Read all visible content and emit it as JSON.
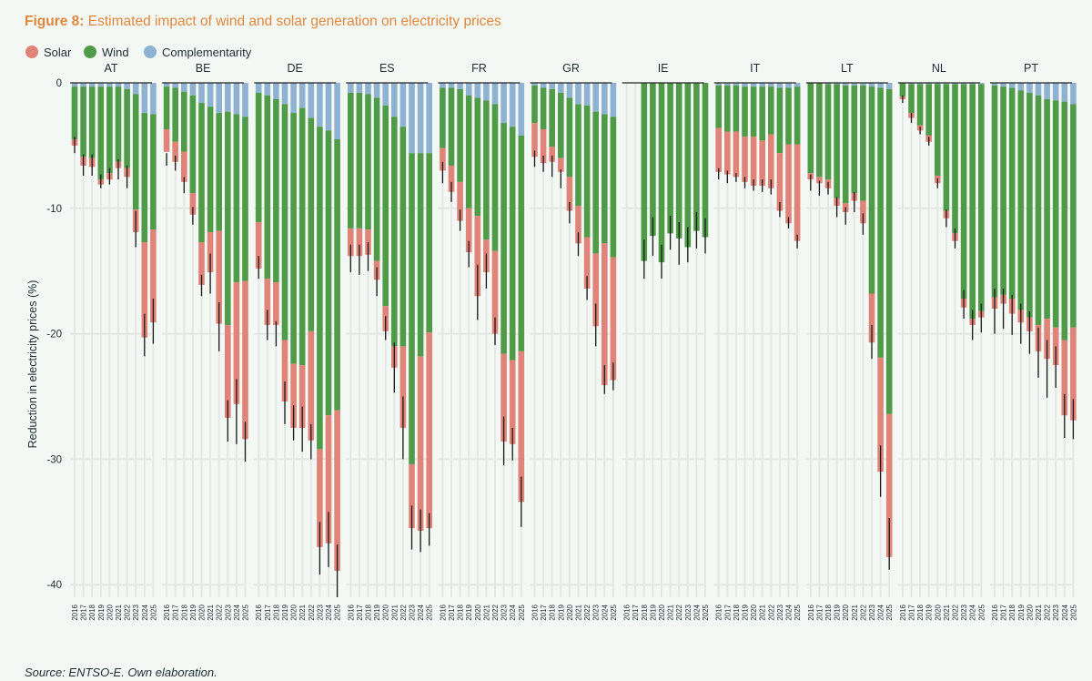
{
  "figure": {
    "label": "Figure 8:",
    "title": "Estimated impact of wind and solar generation on electricity prices",
    "source": "Source: ENTSO-E. Own elaboration."
  },
  "colors": {
    "title": "#e0873a",
    "solar": "#e08378",
    "wind": "#4f9b48",
    "complementarity": "#8fb2d3",
    "background": "#f3f8f5",
    "gridline": "#e3e8e5",
    "errorbar": "#1a1a1a"
  },
  "chart_data": {
    "type": "bar",
    "subtype": "stacked, faceted by country",
    "ylabel": "Reduction in electricity prices (%)",
    "ylim": [
      -41,
      0
    ],
    "yticks": [
      0,
      -10,
      -20,
      -30,
      -40
    ],
    "ytick_labels": [
      "0",
      "-10",
      "-20",
      "-30",
      "-40"
    ],
    "legend": {
      "position": "top-left",
      "items": [
        {
          "key": "solar",
          "label": "Solar"
        },
        {
          "key": "wind",
          "label": "Wind"
        },
        {
          "key": "complementarity",
          "label": "Complementarity"
        }
      ]
    },
    "years": [
      "2016",
      "2017",
      "2018",
      "2019",
      "2020",
      "2021",
      "2022",
      "2023",
      "2024",
      "2025"
    ],
    "stack_order": [
      "complementarity",
      "wind",
      "solar"
    ],
    "notes": "Values are the stack segment sizes (percentage points of price reduction); error bars show the uncertainty range of the total.",
    "panels": [
      {
        "country": "AT",
        "complementarity": [
          0.3,
          0.3,
          0.3,
          0.3,
          0.3,
          0.3,
          0.5,
          0.9,
          2.4,
          2.5
        ],
        "wind": [
          4.2,
          5.6,
          5.7,
          7.4,
          6.9,
          6.0,
          6.3,
          9.2,
          10.3,
          9.2
        ],
        "solar": [
          0.5,
          0.7,
          0.7,
          0.4,
          0.5,
          0.5,
          0.7,
          1.8,
          7.6,
          7.4
        ],
        "err_lo": [
          5.6,
          7.4,
          7.4,
          8.4,
          8.1,
          7.7,
          8.4,
          13.1,
          21.8,
          20.8
        ],
        "err_hi": [
          4.3,
          5.7,
          5.7,
          7.3,
          6.8,
          6.1,
          6.6,
          10.2,
          18.4,
          17.2
        ]
      },
      {
        "country": "BE",
        "complementarity": [
          0.3,
          0.4,
          0.7,
          1.0,
          1.6,
          1.9,
          2.4,
          2.3,
          2.5,
          2.7
        ],
        "wind": [
          3.4,
          4.3,
          4.8,
          7.8,
          11.1,
          10.0,
          9.4,
          17.0,
          13.4,
          13.1
        ],
        "solar": [
          1.8,
          1.6,
          2.4,
          1.7,
          3.4,
          3.2,
          7.4,
          7.4,
          9.7,
          12.6
        ],
        "err_lo": [
          6.6,
          7.0,
          8.8,
          11.3,
          17.0,
          16.8,
          21.4,
          28.6,
          28.8,
          30.2
        ],
        "err_hi": [
          5.6,
          5.8,
          7.5,
          9.9,
          15.3,
          13.6,
          17.5,
          25.3,
          23.6,
          27.0
        ]
      },
      {
        "country": "DE",
        "complementarity": [
          0.8,
          1.0,
          1.3,
          1.7,
          2.4,
          2.0,
          2.8,
          3.5,
          3.8,
          4.5
        ],
        "wind": [
          10.3,
          14.6,
          14.6,
          18.8,
          20.0,
          20.5,
          17.0,
          25.7,
          22.7,
          21.6
        ],
        "solar": [
          3.7,
          3.7,
          3.4,
          4.9,
          5.1,
          5.0,
          8.7,
          7.8,
          10.2,
          12.8
        ],
        "err_lo": [
          15.6,
          20.5,
          21.0,
          27.2,
          28.5,
          29.4,
          30.0,
          39.2,
          38.6,
          41.0
        ],
        "err_hi": [
          13.8,
          18.1,
          19.0,
          23.8,
          25.7,
          25.8,
          27.2,
          35.0,
          34.2,
          36.8
        ]
      },
      {
        "country": "ES",
        "complementarity": [
          0.8,
          0.8,
          0.9,
          1.2,
          1.8,
          2.7,
          3.5,
          5.6,
          5.6,
          5.6
        ],
        "wind": [
          10.8,
          10.8,
          10.8,
          13.0,
          16.0,
          18.3,
          17.5,
          24.8,
          16.2,
          14.3
        ],
        "solar": [
          2.2,
          2.2,
          2.0,
          1.5,
          2.0,
          1.7,
          6.5,
          5.1,
          13.9,
          15.6
        ],
        "err_lo": [
          15.1,
          15.3,
          15.0,
          17.0,
          20.5,
          24.7,
          30.0,
          37.2,
          37.4,
          36.9
        ],
        "err_hi": [
          12.9,
          12.9,
          12.7,
          14.7,
          18.6,
          20.7,
          25.0,
          33.7,
          34.0,
          34.3
        ]
      },
      {
        "country": "FR",
        "complementarity": [
          0.4,
          0.4,
          0.5,
          1.0,
          1.2,
          1.4,
          1.7,
          3.2,
          3.5,
          4.2
        ],
        "wind": [
          4.8,
          6.2,
          7.4,
          9.0,
          9.4,
          11.1,
          11.7,
          18.4,
          18.6,
          17.2
        ],
        "solar": [
          1.8,
          2.1,
          3.1,
          3.5,
          6.4,
          2.6,
          6.6,
          7.0,
          6.7,
          12.0
        ],
        "err_lo": [
          8.0,
          9.5,
          11.8,
          14.7,
          18.9,
          16.4,
          20.9,
          30.5,
          30.1,
          35.4
        ],
        "err_hi": [
          6.3,
          7.9,
          10.1,
          12.6,
          14.5,
          13.6,
          18.7,
          26.6,
          27.5,
          31.4
        ]
      },
      {
        "country": "GR",
        "complementarity": [
          0.2,
          0.4,
          0.5,
          0.8,
          1.2,
          1.7,
          1.8,
          2.3,
          2.5,
          2.7
        ],
        "wind": [
          3.0,
          3.3,
          4.6,
          5.2,
          6.3,
          8.1,
          10.5,
          11.3,
          10.3,
          11.2
        ],
        "solar": [
          2.7,
          2.7,
          1.2,
          1.1,
          2.7,
          3.0,
          4.1,
          5.8,
          11.3,
          9.8
        ],
        "err_lo": [
          6.7,
          7.1,
          7.5,
          8.4,
          11.2,
          13.8,
          17.3,
          21.0,
          24.8,
          24.5
        ],
        "err_hi": [
          5.4,
          5.8,
          5.8,
          6.9,
          9.5,
          11.9,
          15.4,
          17.6,
          22.5,
          22.3
        ]
      },
      {
        "country": "IE",
        "complementarity": [
          0.0,
          0.0,
          0.0,
          0.0,
          0.0,
          0.0,
          0.0,
          0.0,
          0.0,
          0.0
        ],
        "wind": [
          0.0,
          0.0,
          14.2,
          12.2,
          14.3,
          12.0,
          12.4,
          13.1,
          11.8,
          12.3
        ],
        "solar": [
          0.0,
          0.0,
          0.0,
          0.0,
          0.0,
          0.0,
          0.0,
          0.0,
          0.0,
          0.0
        ],
        "err_lo": [
          null,
          null,
          15.6,
          13.8,
          15.6,
          13.3,
          14.5,
          14.3,
          13.2,
          13.6
        ],
        "err_hi": [
          null,
          null,
          12.5,
          10.7,
          12.9,
          10.6,
          11.1,
          11.5,
          10.3,
          10.8
        ]
      },
      {
        "country": "IT",
        "complementarity": [
          0.2,
          0.2,
          0.2,
          0.3,
          0.3,
          0.3,
          0.3,
          0.4,
          0.4,
          0.3
        ],
        "wind": [
          3.4,
          3.7,
          3.7,
          4.0,
          4.0,
          4.3,
          3.8,
          5.2,
          4.5,
          4.6
        ],
        "solar": [
          3.5,
          3.4,
          3.6,
          3.6,
          3.9,
          3.6,
          4.3,
          4.6,
          6.3,
          7.7
        ],
        "err_lo": [
          7.7,
          8.0,
          7.9,
          8.4,
          8.6,
          8.7,
          8.9,
          10.7,
          11.6,
          13.2
        ],
        "err_hi": [
          6.8,
          7.0,
          7.2,
          7.5,
          7.7,
          7.7,
          7.7,
          9.5,
          10.7,
          12.1
        ]
      },
      {
        "country": "LT",
        "complementarity": [
          0.0,
          0.0,
          0.1,
          0.1,
          0.2,
          0.2,
          0.2,
          0.3,
          0.4,
          0.5
        ],
        "wind": [
          7.2,
          7.5,
          7.6,
          9.1,
          9.4,
          8.6,
          9.2,
          16.5,
          21.5,
          25.9
        ],
        "solar": [
          0.5,
          0.5,
          0.7,
          0.6,
          0.7,
          0.6,
          1.8,
          3.9,
          9.1,
          11.4
        ],
        "err_lo": [
          8.6,
          9.0,
          8.9,
          10.7,
          11.3,
          10.3,
          12.1,
          22.0,
          33.0,
          38.8
        ],
        "err_hi": [
          7.3,
          7.8,
          7.9,
          9.1,
          9.9,
          8.7,
          10.4,
          19.3,
          28.9,
          34.7
        ]
      },
      {
        "country": "NL",
        "complementarity": [
          0.0,
          0.1,
          0.1,
          0.1,
          0.1,
          0.1,
          0.1,
          0.1,
          0.1,
          0.1
        ],
        "wind": [
          1.1,
          2.3,
          3.3,
          4.1,
          7.3,
          10.1,
          11.9,
          17.1,
          18.7,
          18.1
        ],
        "solar": [
          0.2,
          0.4,
          0.4,
          0.5,
          0.6,
          0.6,
          0.6,
          0.7,
          0.5,
          0.5
        ],
        "err_lo": [
          1.6,
          3.2,
          4.1,
          5.0,
          8.4,
          11.5,
          13.2,
          18.8,
          20.5,
          19.9
        ],
        "err_hi": [
          1.0,
          2.4,
          3.5,
          4.3,
          7.6,
          10.1,
          11.6,
          16.5,
          18.1,
          17.6
        ]
      },
      {
        "country": "PT",
        "complementarity": [
          0.2,
          0.3,
          0.4,
          0.6,
          0.8,
          1.0,
          1.3,
          1.4,
          1.5,
          1.7
        ],
        "wind": [
          16.9,
          16.6,
          16.8,
          17.5,
          17.9,
          18.3,
          17.5,
          18.1,
          19.0,
          17.8
        ],
        "solar": [
          0.9,
          0.7,
          1.2,
          1.0,
          1.1,
          2.1,
          3.2,
          3.0,
          6.0,
          7.4
        ],
        "err_lo": [
          20.0,
          19.6,
          20.1,
          20.8,
          21.6,
          23.5,
          25.1,
          24.3,
          28.3,
          28.4
        ],
        "err_hi": [
          16.4,
          16.4,
          16.9,
          17.6,
          18.2,
          19.5,
          20.5,
          21.0,
          24.8,
          25.2
        ]
      }
    ]
  }
}
